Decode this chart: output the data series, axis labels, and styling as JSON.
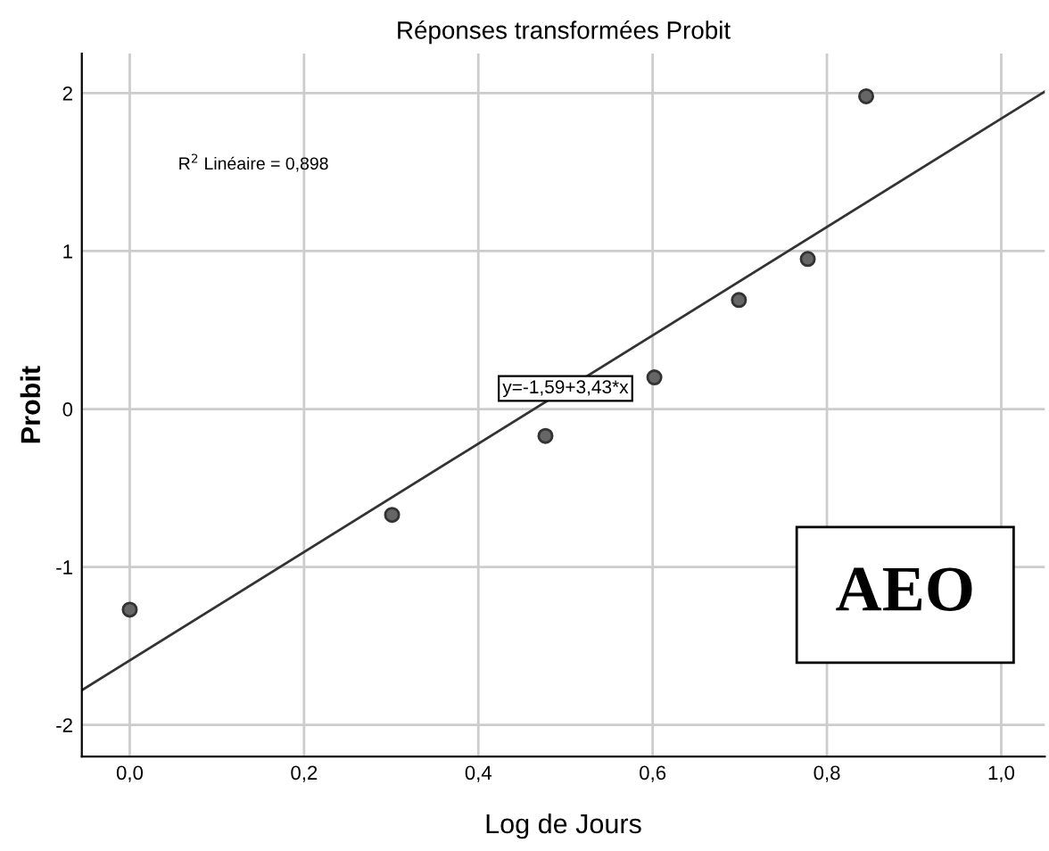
{
  "chart_data": {
    "type": "scatter",
    "title": "Réponses transformées Probit",
    "xlabel": "Log de Jours",
    "ylabel": "Probit",
    "series": [
      {
        "marker": "circle",
        "color": "#666666",
        "x": [
          0.0,
          0.301,
          0.477,
          0.602,
          0.699,
          0.778,
          0.845
        ],
        "values": [
          -1.27,
          -0.67,
          -0.17,
          0.2,
          0.69,
          0.95,
          1.98
        ]
      },
      {
        "type": "line",
        "marker": "none",
        "color": "#333333",
        "x": [
          -0.055,
          1.05
        ],
        "values": [
          -1.78,
          2.01
        ]
      }
    ],
    "annotations": [
      {
        "text": "R$^{2}$ Linéaire = 0,898"
      },
      {
        "text": "y=-1,59+3,43*x",
        "x": 0.5,
        "y": 0.13
      },
      {
        "text": "AEO"
      }
    ],
    "xlim": [
      -0.055,
      1.05
    ],
    "ylim": [
      -2.2,
      2.25
    ],
    "xticks": [
      {
        "value": 0,
        "label": "0,0"
      },
      {
        "value": 0.2,
        "label": "0,2"
      },
      {
        "value": 0.4,
        "label": "0,4"
      },
      {
        "value": 0.6,
        "label": "0,6"
      },
      {
        "value": 0.8,
        "label": "0,8"
      },
      {
        "value": 1.0,
        "label": "1,0"
      }
    ],
    "yticks": [
      -2,
      -1,
      0,
      1,
      2
    ],
    "grid": true,
    "legend": false
  }
}
